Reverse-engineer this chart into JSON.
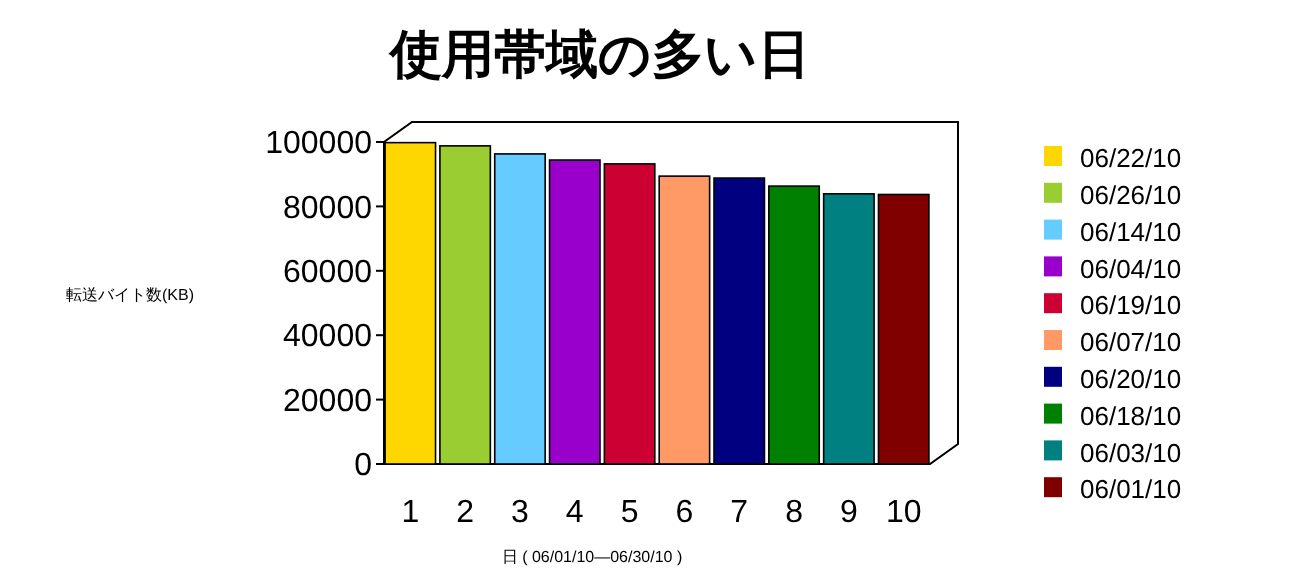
{
  "chart_data": {
    "type": "bar",
    "title": "使用帯域の多い日",
    "xlabel": "日 ( 06/01/10—06/30/10 )",
    "ylabel": "転送バイト数(KB)",
    "categories": [
      "1",
      "2",
      "3",
      "4",
      "5",
      "6",
      "7",
      "8",
      "9",
      "10"
    ],
    "series": [
      {
        "name": "06/22/10",
        "color": "#ffd700",
        "values": [
          99800,
          null,
          null,
          null,
          null,
          null,
          null,
          null,
          null,
          null
        ]
      },
      {
        "name": "06/26/10",
        "color": "#9acd32",
        "values": [
          null,
          98800,
          null,
          null,
          null,
          null,
          null,
          null,
          null,
          null
        ]
      },
      {
        "name": "06/14/10",
        "color": "#66ccff",
        "values": [
          null,
          null,
          96300,
          null,
          null,
          null,
          null,
          null,
          null,
          null
        ]
      },
      {
        "name": "06/04/10",
        "color": "#9900cc",
        "values": [
          null,
          null,
          null,
          94400,
          null,
          null,
          null,
          null,
          null,
          null
        ]
      },
      {
        "name": "06/19/10",
        "color": "#cc0033",
        "values": [
          null,
          null,
          null,
          null,
          93200,
          null,
          null,
          null,
          null,
          null
        ]
      },
      {
        "name": "06/07/10",
        "color": "#ff9966",
        "values": [
          null,
          null,
          null,
          null,
          null,
          89400,
          null,
          null,
          null,
          null
        ]
      },
      {
        "name": "06/20/10",
        "color": "#000080",
        "values": [
          null,
          null,
          null,
          null,
          null,
          null,
          88800,
          null,
          null,
          null
        ]
      },
      {
        "name": "06/18/10",
        "color": "#008000",
        "values": [
          null,
          null,
          null,
          null,
          null,
          null,
          null,
          86300,
          null,
          null
        ]
      },
      {
        "name": "06/03/10",
        "color": "#008080",
        "values": [
          null,
          null,
          null,
          null,
          null,
          null,
          null,
          null,
          83900,
          null
        ]
      },
      {
        "name": "06/01/10",
        "color": "#800000",
        "values": [
          null,
          null,
          null,
          null,
          null,
          null,
          null,
          null,
          null,
          83700
        ]
      }
    ],
    "ylim": [
      0,
      100000
    ],
    "yticks": [
      0,
      20000,
      40000,
      60000,
      80000,
      100000
    ],
    "grid": false,
    "legend": "right"
  }
}
